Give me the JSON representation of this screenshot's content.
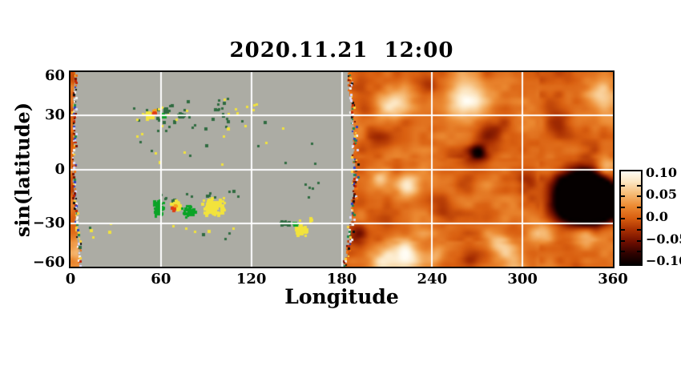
{
  "figure": {
    "title": "2020.11.21  12:00",
    "xlabel": "Longitude",
    "ylabel": "sin(latitude)"
  },
  "chart_data": {
    "type": "heatmap",
    "title": "2020.11.21  12:00",
    "xlabel": "Longitude",
    "ylabel": "sin(latitude)",
    "x_range_deg": [
      0,
      360
    ],
    "y_range_sinlat": [
      -0.9,
      0.9
    ],
    "x_ticks": [
      0,
      60,
      120,
      180,
      240,
      300,
      360
    ],
    "x_tick_labels": [
      "0",
      "60",
      "120",
      "180",
      "240",
      "300",
      "360"
    ],
    "y_ticks_deg": [
      60,
      30,
      0,
      -30,
      -60
    ],
    "y_tick_labels": [
      "60",
      "30",
      "0",
      "−30",
      "−60"
    ],
    "grid": {
      "color": "#ffffff",
      "x_lines_deg": [
        60,
        120,
        180,
        240,
        300
      ],
      "y_lines_sinlat": [
        0.5,
        0,
        -0.5
      ]
    },
    "colorbar": {
      "labels": [
        "0.10",
        "0.05",
        "0.0",
        "−0.05",
        "−0.10"
      ],
      "values": [
        0.1,
        0.05,
        0.0,
        -0.05,
        -0.1
      ],
      "range": [
        -0.105,
        0.105
      ],
      "tick_values": [
        0.075,
        0.05,
        0.025,
        0,
        -0.025,
        -0.05,
        -0.075
      ],
      "stops": [
        [
          -0.115,
          "#050000"
        ],
        [
          -0.09,
          "#2d0200"
        ],
        [
          -0.06,
          "#6e0e00"
        ],
        [
          -0.03,
          "#a82f02"
        ],
        [
          0.0,
          "#d95f10"
        ],
        [
          0.03,
          "#ec8b33"
        ],
        [
          0.06,
          "#f6bc77"
        ],
        [
          0.09,
          "#fce7c4"
        ],
        [
          0.115,
          "#fffdf4"
        ]
      ]
    },
    "frontside": {
      "description": "visible-disk magnetogram region, longitudes ~3-184",
      "background": "#acaca4",
      "palette": {
        "dgreen": "#2f6b40",
        "green": "#0aa326",
        "yellow": "#f2e33c",
        "orange": "#f6a01e",
        "red": "#e03c14"
      },
      "patches": [
        {
          "type": "scatter",
          "colors": [
            "dgreen",
            "dgreen",
            "dgreen",
            "yellow"
          ],
          "lon": [
            56,
            108
          ],
          "slat": [
            0.36,
            0.66
          ],
          "n": 42,
          "size": 3
        },
        {
          "type": "scatter",
          "colors": [
            "yellow",
            "dgreen"
          ],
          "lon": [
            108,
            142
          ],
          "slat": [
            0.36,
            0.62
          ],
          "n": 10,
          "size": 3
        },
        {
          "type": "scatter",
          "colors": [
            "yellow",
            "yellow",
            "dgreen"
          ],
          "lon": [
            36,
            54
          ],
          "slat": [
            0.44,
            0.6
          ],
          "n": 6,
          "size": 3
        },
        {
          "type": "scatter",
          "colors": [
            "dgreen",
            "dgreen",
            "yellow"
          ],
          "lon": [
            10,
            170
          ],
          "slat": [
            0.02,
            0.34
          ],
          "n": 16,
          "size": 3
        },
        {
          "type": "blob",
          "color": "dgreen",
          "lon": 64,
          "slat": 0.55,
          "w": 10,
          "h": 7
        },
        {
          "type": "blob",
          "color": "dgreen",
          "lon": 73,
          "slat": 0.5,
          "w": 12,
          "h": 8
        },
        {
          "type": "blob",
          "color": "yellow",
          "lon": 52.5,
          "slat": 0.5,
          "w": 14,
          "h": 13
        },
        {
          "type": "blob",
          "color": "orange",
          "lon": 55.5,
          "slat": 0.53,
          "w": 6,
          "h": 6
        },
        {
          "type": "blob",
          "color": "red",
          "lon": 55.8,
          "slat": 0.515,
          "w": 3,
          "h": 3
        },
        {
          "type": "blob",
          "color": "green",
          "lon": 61.5,
          "slat": 0.49,
          "w": 5,
          "h": 6
        },
        {
          "type": "scatter",
          "colors": [
            "dgreen"
          ],
          "lon": [
            55,
            112
          ],
          "slat": [
            -0.16,
            -0.3
          ],
          "n": 14,
          "size": 3
        },
        {
          "type": "blob",
          "color": "green",
          "lon": 59,
          "slat": -0.36,
          "w": 12,
          "h": 20
        },
        {
          "type": "blob",
          "color": "green",
          "lon": 79,
          "slat": -0.39,
          "w": 18,
          "h": 15
        },
        {
          "type": "blob",
          "color": "yellow",
          "lon": 70,
          "slat": -0.33,
          "w": 12,
          "h": 12
        },
        {
          "type": "blob",
          "color": "yellow",
          "lon": 95,
          "slat": -0.35,
          "w": 28,
          "h": 22
        },
        {
          "type": "blob",
          "color": "orange",
          "lon": 69.5,
          "slat": -0.35,
          "w": 4,
          "h": 4
        },
        {
          "type": "blob",
          "color": "red",
          "lon": 68.6,
          "slat": -0.37,
          "w": 4,
          "h": 4
        },
        {
          "type": "scatter",
          "colors": [
            "dgreen",
            "yellow"
          ],
          "lon": [
            55,
            118
          ],
          "slat": [
            -0.5,
            -0.64
          ],
          "n": 8,
          "size": 3
        },
        {
          "type": "blob",
          "color": "dgreen",
          "lon": 143,
          "slat": -0.5,
          "w": 16,
          "h": 7
        },
        {
          "type": "blob",
          "color": "green",
          "lon": 149,
          "slat": -0.51,
          "w": 9,
          "h": 7
        },
        {
          "type": "blob",
          "color": "yellow",
          "lon": 153.5,
          "slat": -0.565,
          "w": 18,
          "h": 13
        },
        {
          "type": "scatter",
          "colors": [
            "yellow"
          ],
          "lon": [
            142,
            160
          ],
          "slat": [
            -0.4,
            -0.48
          ],
          "n": 4,
          "size": 3
        },
        {
          "type": "scatter",
          "colors": [
            "dgreen"
          ],
          "lon": [
            148,
            164
          ],
          "slat": [
            -0.1,
            -0.28
          ],
          "n": 5,
          "size": 3
        },
        {
          "type": "scatter",
          "colors": [
            "dgreen",
            "yellow"
          ],
          "lon": [
            12,
            48
          ],
          "slat": [
            -0.25,
            -0.62
          ],
          "n": 5,
          "size": 3
        },
        {
          "type": "scatter",
          "colors": [
            "dgreen"
          ],
          "lon": [
            4,
            8
          ],
          "slat": [
            -0.7,
            -0.75
          ],
          "n": 1,
          "size": 4
        }
      ]
    },
    "farside": {
      "description": "helioseismic far-side signal map, longitudes ~184-360 plus sliver at lon<3",
      "noise": {
        "seed": 7,
        "amp": 0.027,
        "bias": 0.008,
        "grid": [
          27,
          13
        ]
      },
      "features": [
        {
          "lon": 340,
          "slat": -0.26,
          "amp": -0.5,
          "r": 20
        },
        {
          "lon": 354,
          "slat": -0.3,
          "amp": -0.3,
          "r": 14
        },
        {
          "lon": 263,
          "slat": 0.67,
          "amp": 0.1,
          "r": 16
        },
        {
          "lon": 214,
          "slat": 0.62,
          "amp": 0.07,
          "r": 15
        },
        {
          "lon": 353,
          "slat": 0.71,
          "amp": 0.08,
          "r": 14
        },
        {
          "lon": 224,
          "slat": -0.15,
          "amp": 0.08,
          "r": 10
        },
        {
          "lon": 206,
          "slat": -0.08,
          "amp": 0.05,
          "r": 8
        },
        {
          "lon": 222,
          "slat": -0.82,
          "amp": 0.1,
          "r": 16
        },
        {
          "lon": 207,
          "slat": -0.88,
          "amp": 0.06,
          "r": 10
        },
        {
          "lon": 243,
          "slat": -0.8,
          "amp": 0.05,
          "r": 8
        },
        {
          "lon": 284,
          "slat": -0.68,
          "amp": 0.06,
          "r": 12
        },
        {
          "lon": 314,
          "slat": -0.6,
          "amp": 0.06,
          "r": 11
        },
        {
          "lon": 344,
          "slat": -0.62,
          "amp": 0.07,
          "r": 11
        },
        {
          "lon": 356,
          "slat": 0.03,
          "amp": 0.06,
          "r": 10
        },
        {
          "lon": 295,
          "slat": -0.86,
          "amp": 0.05,
          "r": 12
        },
        {
          "lon": 271,
          "slat": 0.16,
          "amp": -0.09,
          "r": 7
        },
        {
          "lon": 266,
          "slat": 0.1,
          "amp": -0.05,
          "r": 16
        },
        {
          "lon": 280,
          "slat": 0.38,
          "amp": -0.045,
          "r": 13
        },
        {
          "lon": 203,
          "slat": 0.28,
          "amp": -0.045,
          "r": 13
        },
        {
          "lon": 198,
          "slat": 0.56,
          "amp": -0.04,
          "r": 9
        },
        {
          "lon": 248,
          "slat": -0.3,
          "amp": -0.045,
          "r": 11
        },
        {
          "lon": 325,
          "slat": 0.45,
          "amp": -0.05,
          "r": 12
        },
        {
          "lon": 304,
          "slat": -0.12,
          "amp": -0.04,
          "r": 9
        },
        {
          "lon": 190,
          "slat": -0.62,
          "amp": -0.06,
          "r": 10
        },
        {
          "lon": 266,
          "slat": -0.85,
          "amp": -0.04,
          "r": 9
        },
        {
          "lon": 237,
          "slat": 0.8,
          "amp": -0.035,
          "r": 8
        },
        {
          "lon": 2,
          "slat": -0.75,
          "amp": 0.06,
          "r": 10
        },
        {
          "lon": 2,
          "slat": 0.55,
          "amp": -0.04,
          "r": 8
        },
        {
          "lon": 2,
          "slat": -0.2,
          "amp": -0.03,
          "r": 6
        }
      ]
    },
    "terminator": {
      "right_lon_deg": 184,
      "left_lon_deg": 3,
      "speckle_palette": [
        "#c52500",
        "#f07010",
        "#2b3fc0",
        "#101010",
        "#f5f5f5",
        "#ffd23c",
        "#1f8a4c",
        "#7a1000",
        "#dcdcff"
      ]
    }
  }
}
